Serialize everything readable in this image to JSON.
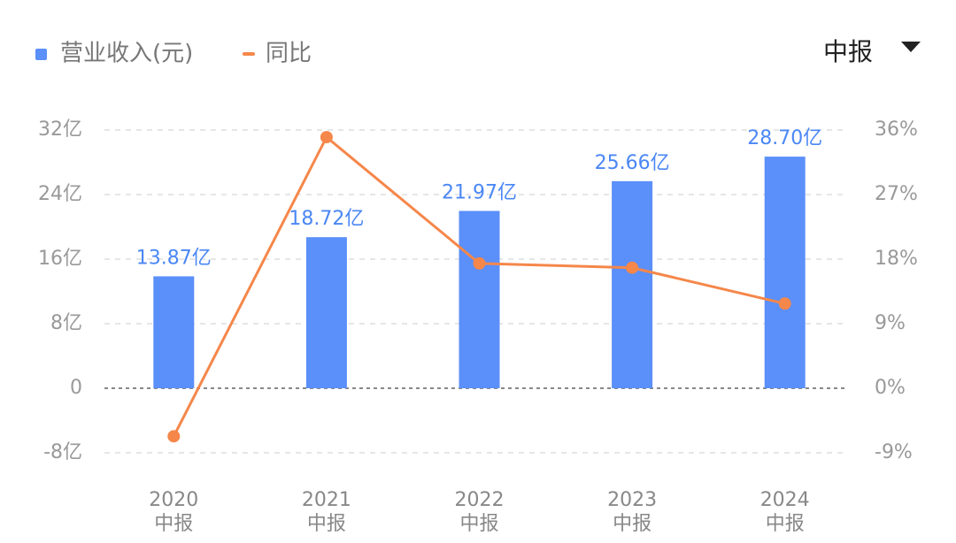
{
  "chart_data": {
    "type": "bar-line",
    "period_selector": "中报",
    "categories": [
      "2020",
      "2021",
      "2022",
      "2023",
      "2024"
    ],
    "category_sublabel": "中报",
    "series": [
      {
        "name": "营业收入(元)",
        "color": "#5b8ff9",
        "type": "bar",
        "axis": "y",
        "values": [
          13.87,
          18.72,
          21.97,
          25.66,
          28.7
        ],
        "value_labels": [
          "13.87亿",
          "18.72亿",
          "21.97亿",
          "25.66亿",
          "28.70亿"
        ]
      },
      {
        "name": "同比",
        "color": "#f5874a",
        "type": "line",
        "axis": "y2",
        "values": [
          -6.7,
          35.0,
          17.4,
          16.8,
          11.8
        ]
      }
    ],
    "ylim": [
      -8,
      32
    ],
    "yticks": [
      {
        "value": -8,
        "label": "-8亿"
      },
      0,
      {
        "value": 8,
        "label": "8亿"
      },
      {
        "value": 16,
        "label": "16亿"
      },
      {
        "value": 24,
        "label": "24亿"
      },
      {
        "value": 32,
        "label": "32亿"
      }
    ],
    "y2lim": [
      -9,
      36
    ],
    "y2ticks": [
      {
        "value": -9,
        "label": "-9%"
      },
      {
        "value": 0,
        "label": "0%"
      },
      {
        "value": 9,
        "label": "9%"
      },
      {
        "value": 18,
        "label": "18%"
      },
      {
        "value": 27,
        "label": "27%"
      },
      {
        "value": 36,
        "label": "36%"
      }
    ],
    "grid": true
  }
}
